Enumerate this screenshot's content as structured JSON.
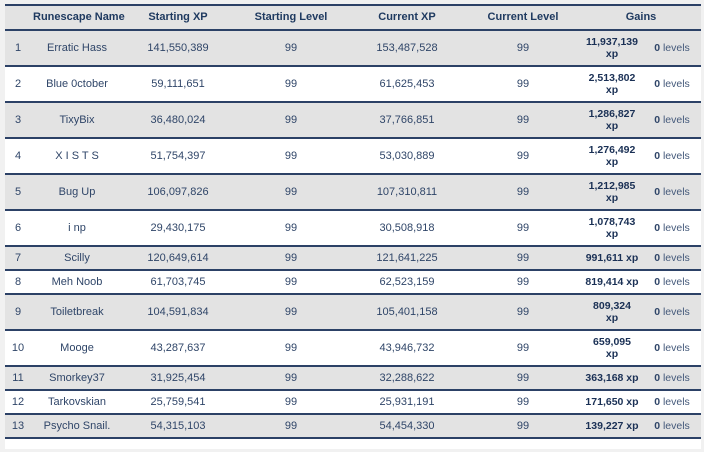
{
  "colors": {
    "border_navy": "#2c4166",
    "row_stripe": "#e3e3e3",
    "row_plain": "#ffffff",
    "text_navy": "#2f4568",
    "gains_bold_navy": "#1a3055",
    "page_background": "#f1f1f1"
  },
  "table": {
    "columns": [
      "Runescape Name",
      "Starting XP",
      "Starting Level",
      "Current XP",
      "Current Level",
      "Gains"
    ],
    "rows": [
      {
        "rank": "1",
        "name": "Erratic Hass",
        "starting_xp": "141,550,389",
        "starting_level": "99",
        "current_xp": "153,487,528",
        "current_level": "99",
        "gains_xp": "11,937,139\nxp",
        "gains_levels_value": "0",
        "gains_levels_unit": "levels"
      },
      {
        "rank": "2",
        "name": "Blue 0ctober",
        "starting_xp": "59,111,651",
        "starting_level": "99",
        "current_xp": "61,625,453",
        "current_level": "99",
        "gains_xp": "2,513,802\nxp",
        "gains_levels_value": "0",
        "gains_levels_unit": "levels"
      },
      {
        "rank": "3",
        "name": "TixyBix",
        "starting_xp": "36,480,024",
        "starting_level": "99",
        "current_xp": "37,766,851",
        "current_level": "99",
        "gains_xp": "1,286,827\nxp",
        "gains_levels_value": "0",
        "gains_levels_unit": "levels"
      },
      {
        "rank": "4",
        "name": "X I S T S",
        "starting_xp": "51,754,397",
        "starting_level": "99",
        "current_xp": "53,030,889",
        "current_level": "99",
        "gains_xp": "1,276,492\nxp",
        "gains_levels_value": "0",
        "gains_levels_unit": "levels"
      },
      {
        "rank": "5",
        "name": "Bug Up",
        "starting_xp": "106,097,826",
        "starting_level": "99",
        "current_xp": "107,310,811",
        "current_level": "99",
        "gains_xp": "1,212,985\nxp",
        "gains_levels_value": "0",
        "gains_levels_unit": "levels"
      },
      {
        "rank": "6",
        "name": "i np",
        "starting_xp": "29,430,175",
        "starting_level": "99",
        "current_xp": "30,508,918",
        "current_level": "99",
        "gains_xp": "1,078,743\nxp",
        "gains_levels_value": "0",
        "gains_levels_unit": "levels"
      },
      {
        "rank": "7",
        "name": "Scilly",
        "starting_xp": "120,649,614",
        "starting_level": "99",
        "current_xp": "121,641,225",
        "current_level": "99",
        "gains_xp": "991,611 xp",
        "gains_levels_value": "0",
        "gains_levels_unit": "levels"
      },
      {
        "rank": "8",
        "name": "Meh Noob",
        "starting_xp": "61,703,745",
        "starting_level": "99",
        "current_xp": "62,523,159",
        "current_level": "99",
        "gains_xp": "819,414 xp",
        "gains_levels_value": "0",
        "gains_levels_unit": "levels"
      },
      {
        "rank": "9",
        "name": "Toiletbreak",
        "starting_xp": "104,591,834",
        "starting_level": "99",
        "current_xp": "105,401,158",
        "current_level": "99",
        "gains_xp": "809,324\nxp",
        "gains_levels_value": "0",
        "gains_levels_unit": "levels"
      },
      {
        "rank": "10",
        "name": "Mooge",
        "starting_xp": "43,287,637",
        "starting_level": "99",
        "current_xp": "43,946,732",
        "current_level": "99",
        "gains_xp": "659,095\nxp",
        "gains_levels_value": "0",
        "gains_levels_unit": "levels"
      },
      {
        "rank": "11",
        "name": "Smorkey37",
        "starting_xp": "31,925,454",
        "starting_level": "99",
        "current_xp": "32,288,622",
        "current_level": "99",
        "gains_xp": "363,168 xp",
        "gains_levels_value": "0",
        "gains_levels_unit": "levels"
      },
      {
        "rank": "12",
        "name": "Tarkovskian",
        "starting_xp": "25,759,541",
        "starting_level": "99",
        "current_xp": "25,931,191",
        "current_level": "99",
        "gains_xp": "171,650 xp",
        "gains_levels_value": "0",
        "gains_levels_unit": "levels"
      },
      {
        "rank": "13",
        "name": "Psycho Snail.",
        "starting_xp": "54,315,103",
        "starting_level": "99",
        "current_xp": "54,454,330",
        "current_level": "99",
        "gains_xp": "139,227 xp",
        "gains_levels_value": "0",
        "gains_levels_unit": "levels"
      }
    ]
  }
}
